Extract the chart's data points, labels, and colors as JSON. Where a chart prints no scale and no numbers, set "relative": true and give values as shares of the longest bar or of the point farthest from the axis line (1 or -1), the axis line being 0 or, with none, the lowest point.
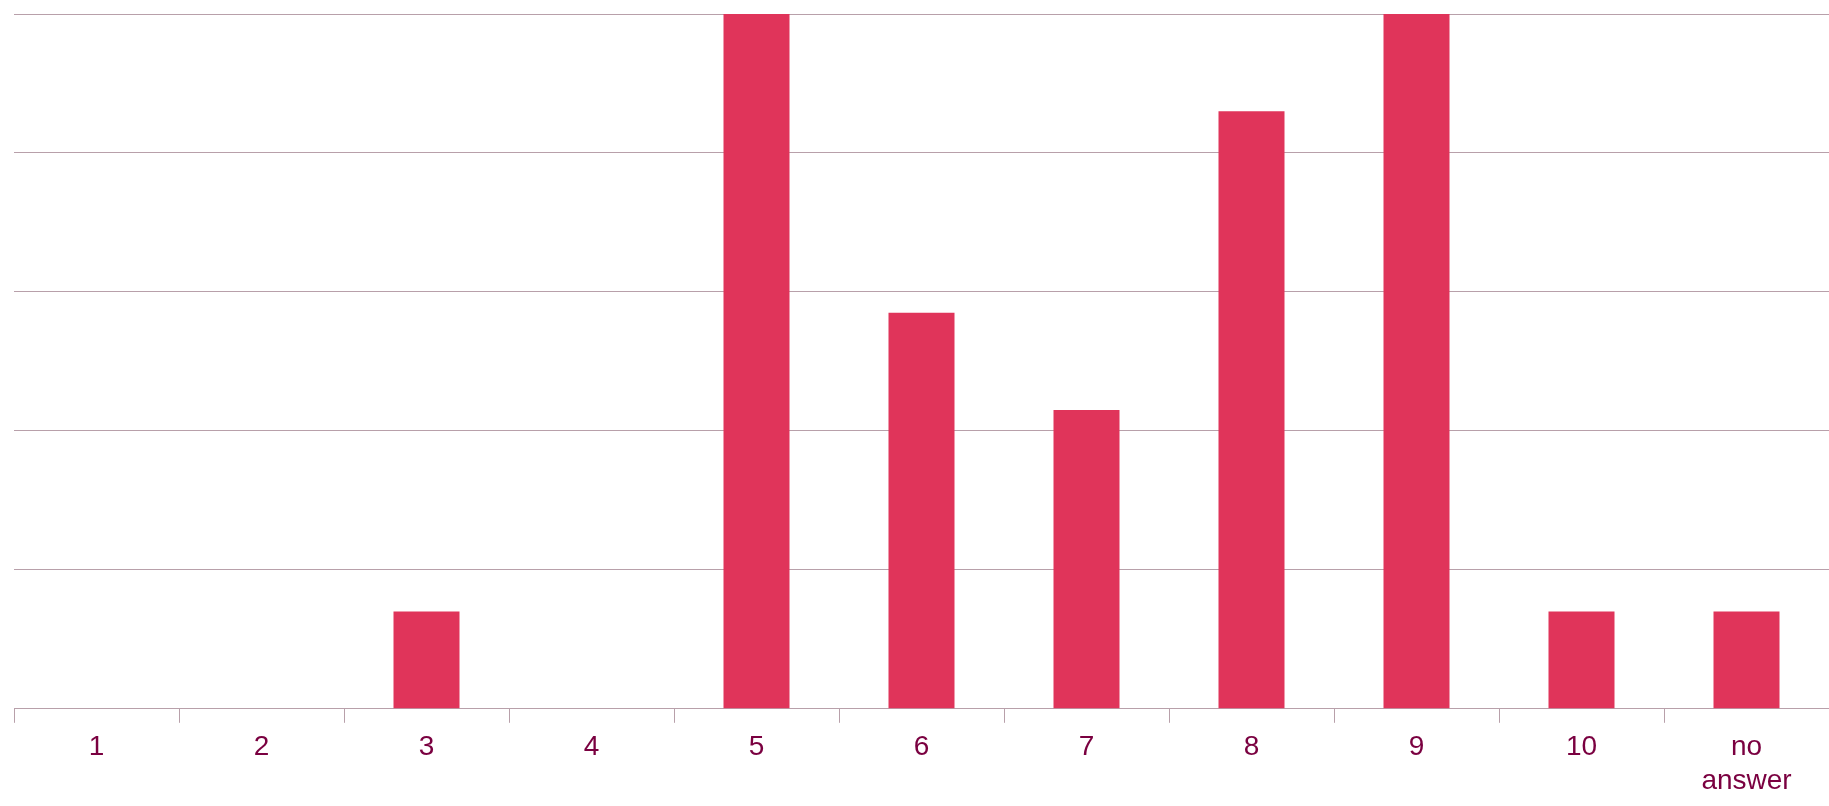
{
  "chart_data": {
    "type": "bar",
    "relative": true,
    "categories": [
      "1",
      "2",
      "3",
      "4",
      "5",
      "6",
      "7",
      "8",
      "9",
      "10",
      "no answer"
    ],
    "values": [
      0,
      0,
      0.14,
      0,
      1,
      0.57,
      0.43,
      0.86,
      1,
      0.14,
      0.14
    ],
    "color": "#e0345a",
    "grid": "y",
    "legend": false
  }
}
